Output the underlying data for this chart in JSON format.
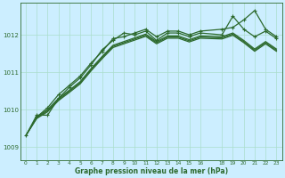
{
  "bg_color": "#cceeff",
  "grid_color": "#aaddcc",
  "line_color": "#2d6a2d",
  "xlabel": "Graphe pression niveau de la mer (hPa)",
  "ylim": [
    1008.65,
    1012.85
  ],
  "yticks": [
    1009,
    1010,
    1011,
    1012
  ],
  "xticks": [
    0,
    1,
    2,
    3,
    4,
    5,
    6,
    7,
    8,
    9,
    10,
    11,
    12,
    13,
    14,
    15,
    16,
    18,
    19,
    20,
    21,
    22,
    23
  ],
  "line1_x": [
    0,
    1,
    2,
    3,
    4,
    5,
    6,
    7,
    8,
    9,
    10,
    11,
    12,
    13,
    14,
    15,
    16,
    18,
    19,
    20,
    21,
    22,
    23
  ],
  "line1_y": [
    1009.3,
    1009.85,
    1009.85,
    1010.3,
    1010.6,
    1010.85,
    1011.2,
    1011.6,
    1011.85,
    1012.05,
    1012.0,
    1012.1,
    1011.85,
    1012.05,
    1012.05,
    1011.95,
    1012.05,
    1012.0,
    1012.5,
    1012.15,
    1011.95,
    1012.1,
    1011.9
  ],
  "line2_x": [
    1,
    2,
    3,
    4,
    5,
    6,
    7,
    8,
    9,
    10,
    11,
    12,
    13,
    14,
    15,
    16,
    18,
    19,
    20,
    21,
    22,
    23
  ],
  "line2_y": [
    1009.8,
    1010.05,
    1010.4,
    1010.65,
    1010.9,
    1011.25,
    1011.55,
    1011.9,
    1011.95,
    1012.05,
    1012.15,
    1011.95,
    1012.1,
    1012.1,
    1012.0,
    1012.1,
    1012.15,
    1012.2,
    1012.4,
    1012.65,
    1012.15,
    1011.95
  ],
  "line3_x": [
    0,
    1,
    2,
    3,
    4,
    5,
    6,
    7,
    8,
    9,
    10,
    11,
    12,
    13,
    14,
    15,
    16,
    18,
    19,
    20,
    21,
    22,
    23
  ],
  "line3_y": [
    1009.3,
    1009.8,
    1010.0,
    1010.3,
    1010.52,
    1010.75,
    1011.1,
    1011.42,
    1011.72,
    1011.82,
    1011.92,
    1012.02,
    1011.82,
    1011.97,
    1011.97,
    1011.87,
    1011.97,
    1011.95,
    1012.05,
    1011.85,
    1011.62,
    1011.82,
    1011.62
  ],
  "line4_x": [
    0,
    1,
    2,
    3,
    4,
    5,
    6,
    7,
    8,
    9,
    10,
    11,
    12,
    13,
    14,
    15,
    16,
    18,
    19,
    20,
    21,
    22,
    23
  ],
  "line4_y": [
    1009.3,
    1009.78,
    1009.97,
    1010.27,
    1010.49,
    1010.72,
    1011.07,
    1011.39,
    1011.69,
    1011.79,
    1011.89,
    1011.99,
    1011.79,
    1011.94,
    1011.94,
    1011.84,
    1011.94,
    1011.92,
    1012.02,
    1011.82,
    1011.59,
    1011.79,
    1011.59
  ],
  "line5_x": [
    0,
    1,
    2,
    3,
    4,
    5,
    6,
    7,
    8,
    9,
    10,
    11,
    12,
    13,
    14,
    15,
    16,
    18,
    19,
    20,
    21,
    22,
    23
  ],
  "line5_y": [
    1009.3,
    1009.76,
    1009.94,
    1010.24,
    1010.46,
    1010.69,
    1011.04,
    1011.36,
    1011.66,
    1011.76,
    1011.86,
    1011.96,
    1011.76,
    1011.91,
    1011.91,
    1011.81,
    1011.91,
    1011.89,
    1011.99,
    1011.79,
    1011.56,
    1011.76,
    1011.56
  ]
}
